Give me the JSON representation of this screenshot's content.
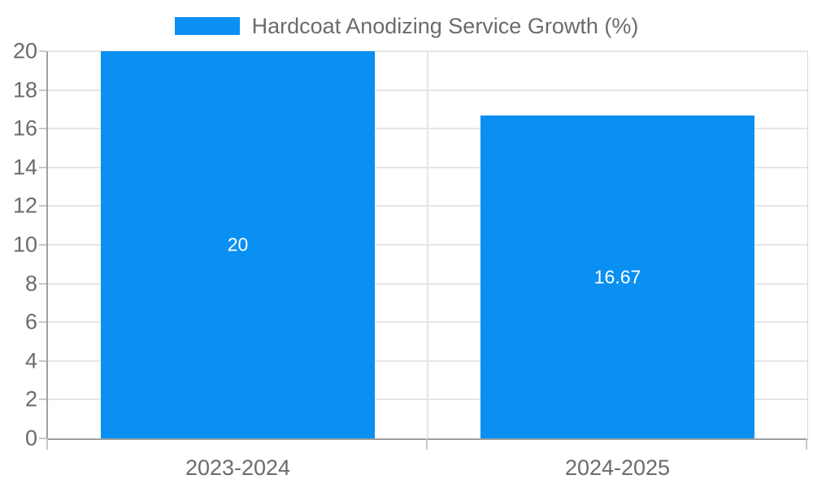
{
  "legend": {
    "label": "Hardcoat Anodizing Service Growth (%)"
  },
  "chart_data": {
    "type": "bar",
    "title": "Hardcoat Anodizing Service Growth (%)",
    "categories": [
      "2023-2024",
      "2024-2025"
    ],
    "values": [
      20,
      16.67
    ],
    "value_labels": [
      "20",
      "16.67"
    ],
    "ylim": [
      0,
      20
    ],
    "yticks": [
      0,
      2,
      4,
      6,
      8,
      10,
      12,
      14,
      16,
      18,
      20
    ],
    "grid": true,
    "legend_position": "top-center",
    "colors": {
      "bar": "#0990f2",
      "bar_label": "#ffffff",
      "grid": "#e6e6e6",
      "axis": "#a0a0a0",
      "plot_border_right": "#d9d9d9",
      "tick": "#c9c9c9",
      "text": "#6b6b6b",
      "background": "#ffffff"
    }
  }
}
